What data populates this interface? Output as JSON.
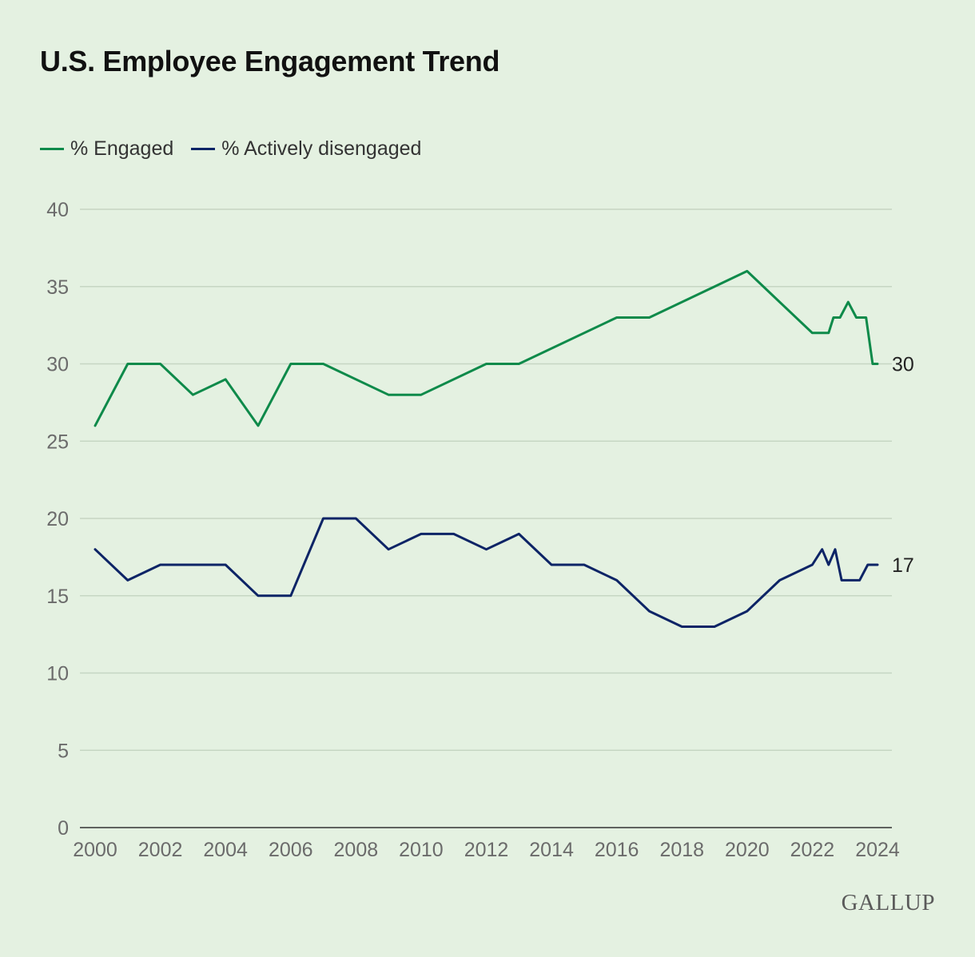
{
  "title": "U.S. Employee Engagement Trend",
  "brand": "GALLUP",
  "legend": [
    {
      "label": "% Engaged",
      "color": "#0e8a4a"
    },
    {
      "label": "% Actively disengaged",
      "color": "#0d2466"
    }
  ],
  "chart_data": {
    "type": "line",
    "title": "U.S. Employee Engagement Trend",
    "xlabel": "",
    "ylabel": "",
    "xlim": [
      2000,
      2024
    ],
    "ylim": [
      0,
      40
    ],
    "x_ticks": [
      "2000",
      "2002",
      "2004",
      "2006",
      "2008",
      "2010",
      "2012",
      "2014",
      "2016",
      "2018",
      "2020",
      "2022",
      "2024"
    ],
    "y_ticks": [
      "0",
      "5",
      "10",
      "15",
      "20",
      "25",
      "30",
      "35",
      "40"
    ],
    "grid": true,
    "legend_position": "top-left",
    "series": [
      {
        "name": "% Engaged",
        "color": "#0e8a4a",
        "x": [
          2000,
          2001,
          2002,
          2003,
          2004,
          2005,
          2006,
          2007,
          2009,
          2010,
          2012,
          2013,
          2016,
          2017,
          2020,
          2021,
          2022,
          2022.5,
          2022.65,
          2022.85,
          2023.1,
          2023.35,
          2023.65,
          2023.85,
          2024
        ],
        "y": [
          26,
          30,
          30,
          28,
          29,
          26,
          30,
          30,
          28,
          28,
          30,
          30,
          33,
          33,
          36,
          34,
          32,
          32,
          33,
          33,
          34,
          33,
          33,
          30,
          30
        ],
        "end_label": "30"
      },
      {
        "name": "% Actively disengaged",
        "color": "#0d2466",
        "x": [
          2000,
          2001,
          2002,
          2004,
          2005,
          2006,
          2007,
          2008,
          2009,
          2010,
          2011,
          2012,
          2013,
          2014,
          2015,
          2016,
          2017,
          2018,
          2019,
          2020,
          2021,
          2022,
          2022.3,
          2022.5,
          2022.7,
          2022.9,
          2023.2,
          2023.45,
          2023.7,
          2023.85,
          2024
        ],
        "y": [
          18,
          16,
          17,
          17,
          15,
          15,
          20,
          20,
          18,
          19,
          19,
          18,
          19,
          17,
          17,
          16,
          14,
          13,
          13,
          14,
          16,
          17,
          18,
          17,
          18,
          16,
          16,
          16,
          17,
          17,
          17
        ],
        "end_label": "17"
      }
    ]
  }
}
